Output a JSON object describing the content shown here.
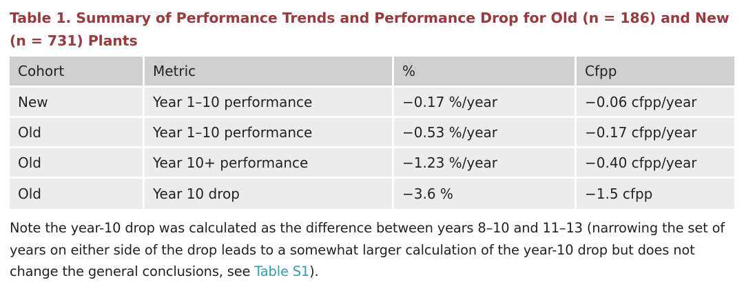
{
  "caption": "Table 1.  Summary of Performance Trends and Performance Drop for Old (n = 186) and New (n = 731) Plants",
  "table": {
    "headers": [
      "Cohort",
      "Metric",
      "%",
      "Cfpp"
    ],
    "rows": [
      [
        "New",
        "Year 1–10 performance",
        "−0.17 %/year",
        "−0.06 cfpp/year"
      ],
      [
        "Old",
        "Year 1–10 performance",
        "−0.53 %/year",
        "−0.17 cfpp/year"
      ],
      [
        "Old",
        "Year 10+ performance",
        "−1.23 %/year",
        "−0.40 cfpp/year"
      ],
      [
        "Old",
        "Year 10 drop",
        "−3.6 %",
        "−1.5 cfpp"
      ]
    ]
  },
  "note": {
    "text_before": "Note the year-10 drop was calculated as the difference between years 8–10 and 11–13 (narrowing the set of years on either side of the drop leads to a somewhat larger calculation of the year-10 drop but does not change the general conclusions, see ",
    "link": "Table S1",
    "text_after": ")."
  }
}
